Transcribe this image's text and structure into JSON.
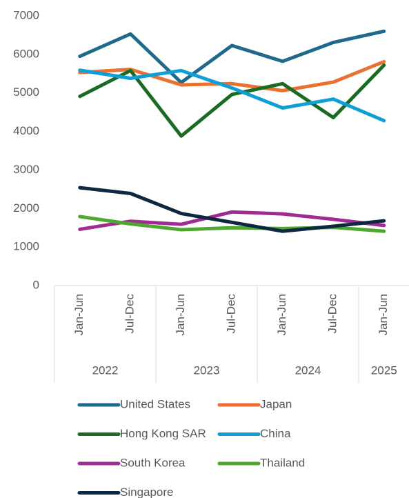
{
  "chart_data": {
    "type": "line",
    "groups": [
      {
        "name": "2022",
        "categories": [
          "Jan-Jun",
          "Jul-Dec"
        ]
      },
      {
        "name": "2023",
        "categories": [
          "Jan-Jun",
          "Jul-Dec"
        ]
      },
      {
        "name": "2024",
        "categories": [
          "Jan-Jun",
          "Jul-Dec"
        ]
      },
      {
        "name": "2025",
        "categories": [
          "Jan-Jun"
        ]
      }
    ],
    "series": [
      {
        "name": "United States",
        "color": "#1f6a8c",
        "values": [
          5950,
          6530,
          5270,
          6230,
          5820,
          6310,
          6600
        ]
      },
      {
        "name": "Japan",
        "color": "#e97132",
        "values": [
          5530,
          5610,
          5210,
          5240,
          5060,
          5280,
          5810
        ]
      },
      {
        "name": "Hong Kong SAR",
        "color": "#196b24",
        "values": [
          4910,
          5580,
          3880,
          4960,
          5240,
          4360,
          5720
        ]
      },
      {
        "name": "China",
        "color": "#0f9ed5",
        "values": [
          5590,
          5380,
          5580,
          5130,
          4610,
          4840,
          4280
        ]
      },
      {
        "name": "South Korea",
        "color": "#a02b93",
        "values": [
          1460,
          1670,
          1590,
          1910,
          1860,
          1720,
          1560
        ]
      },
      {
        "name": "Thailand",
        "color": "#4ea72e",
        "values": [
          1790,
          1600,
          1450,
          1500,
          1480,
          1510,
          1410
        ]
      },
      {
        "name": "Singapore",
        "color": "#0e2841",
        "values": [
          2540,
          2390,
          1870,
          1640,
          1410,
          1540,
          1680
        ]
      }
    ],
    "ylim": [
      0,
      7000
    ],
    "yticks": [
      0,
      1000,
      2000,
      3000,
      4000,
      5000,
      6000,
      7000
    ],
    "grid": false,
    "legend": "bottom"
  }
}
